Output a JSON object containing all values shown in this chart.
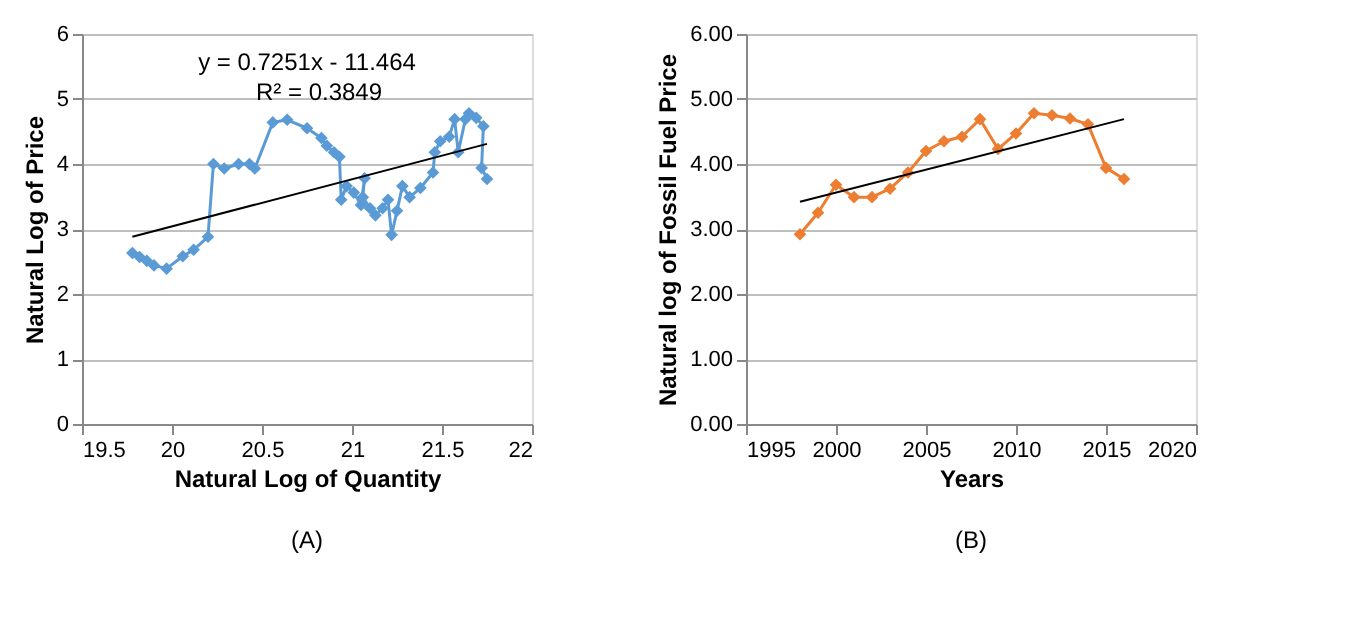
{
  "chart_data": [
    {
      "type": "line",
      "xlabel": "Natural Log of Quantity",
      "ylabel": "Natural Log of Price",
      "xlim": [
        19.5,
        22
      ],
      "xticks": [
        19.5,
        20,
        20.5,
        21,
        21.5,
        22
      ],
      "ylim": [
        0,
        6
      ],
      "yticks": [
        0,
        1,
        2,
        3,
        4,
        5,
        6
      ],
      "grid": "y",
      "marker": "diamond",
      "line_style": "solid",
      "annotations": [
        "y = 0.7251x - 11.464",
        "R² = 0.3849",
        "(A)"
      ],
      "series": [
        {
          "color": "#5b9bd5",
          "x": [
            19.78,
            19.82,
            19.86,
            19.9,
            19.97,
            20.06,
            20.12,
            20.2,
            20.23,
            20.29,
            20.37,
            20.43,
            20.46,
            20.56,
            20.64,
            20.75,
            20.83,
            20.86,
            20.9,
            20.93,
            20.94,
            20.97,
            21.01,
            21.05,
            21.07,
            21.06,
            21.1,
            21.13,
            21.17,
            21.2,
            21.22,
            21.25,
            21.28,
            21.32,
            21.38,
            21.45,
            21.46,
            21.49,
            21.54,
            21.57,
            21.59,
            21.63,
            21.65,
            21.69,
            21.73,
            21.72,
            21.75
          ],
          "values": [
            2.63,
            2.57,
            2.51,
            2.44,
            2.39,
            2.58,
            2.68,
            2.88,
            4.0,
            3.93,
            4.0,
            4.0,
            3.93,
            4.64,
            4.68,
            4.55,
            4.4,
            4.28,
            4.18,
            4.11,
            3.45,
            3.66,
            3.56,
            3.37,
            3.78,
            3.49,
            3.32,
            3.21,
            3.32,
            3.45,
            2.91,
            3.28,
            3.66,
            3.49,
            3.63,
            3.87,
            4.18,
            4.35,
            4.42,
            4.69,
            4.18,
            4.69,
            4.78,
            4.71,
            4.58,
            3.94,
            3.77
          ]
        },
        {
          "type": "line",
          "marker": "none",
          "color": "#000000",
          "x": [
            19.78,
            21.75
          ],
          "values": [
            2.88,
            4.31
          ]
        }
      ]
    },
    {
      "type": "line",
      "xlabel": "Years",
      "ylabel": "Natural log of Fossil Fuel Price",
      "xlim": [
        1995,
        2020
      ],
      "xticks": [
        1995,
        2000,
        2005,
        2010,
        2015,
        2020
      ],
      "ylim": [
        0,
        6
      ],
      "yticks": [
        {
          "value": 0,
          "label": "0.00"
        },
        {
          "value": 1,
          "label": "1.00"
        },
        {
          "value": 2,
          "label": "2.00"
        },
        {
          "value": 3,
          "label": "3.00"
        },
        {
          "value": 4,
          "label": "4.00"
        },
        {
          "value": 5,
          "label": "5.00"
        },
        {
          "value": 6,
          "label": "6.00"
        }
      ],
      "grid": "y",
      "marker": "diamond",
      "line_style": "solid",
      "annotations": [
        "(B)"
      ],
      "x": [
        1998,
        1999,
        2000,
        2001,
        2002,
        2003,
        2004,
        2005,
        2006,
        2007,
        2008,
        2009,
        2010,
        2011,
        2012,
        2013,
        2014,
        2015,
        2016
      ],
      "series": [
        {
          "color": "#ed7d31",
          "values": [
            2.92,
            3.25,
            3.68,
            3.49,
            3.49,
            3.62,
            3.87,
            4.2,
            4.35,
            4.42,
            4.69,
            4.23,
            4.47,
            4.78,
            4.75,
            4.7,
            4.61,
            3.94,
            3.77
          ]
        },
        {
          "type": "line",
          "marker": "none",
          "color": "#000000",
          "x": [
            1998,
            2016
          ],
          "values": [
            3.42,
            4.69
          ]
        }
      ]
    }
  ]
}
